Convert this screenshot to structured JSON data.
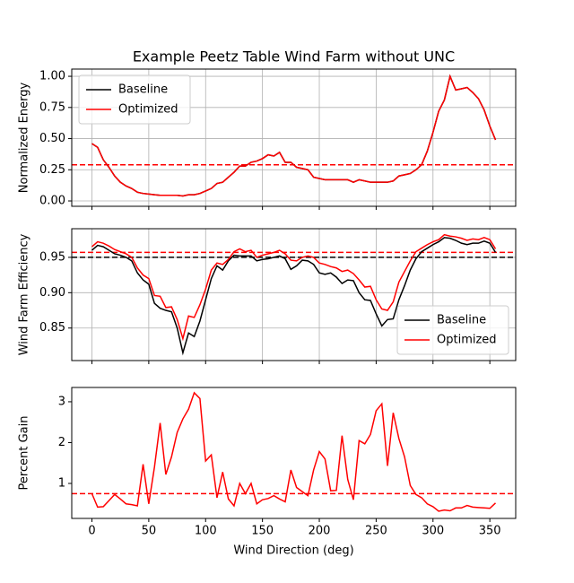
{
  "chart_data": [
    {
      "type": "line",
      "title": "Example Peetz Table Wind Farm without UNC",
      "ylabel": "Normalized Energy",
      "x": [
        0,
        5,
        10,
        15,
        20,
        25,
        30,
        35,
        40,
        45,
        50,
        55,
        60,
        65,
        70,
        75,
        80,
        85,
        90,
        95,
        100,
        105,
        110,
        115,
        120,
        125,
        130,
        135,
        140,
        145,
        150,
        155,
        160,
        165,
        170,
        175,
        180,
        185,
        190,
        195,
        200,
        205,
        210,
        215,
        220,
        225,
        230,
        235,
        240,
        245,
        250,
        255,
        260,
        265,
        270,
        275,
        280,
        285,
        290,
        295,
        300,
        305,
        310,
        315,
        320,
        325,
        330,
        335,
        340,
        345,
        350,
        355
      ],
      "series": [
        {
          "name": "Baseline",
          "color": "#000000",
          "values": [
            0.46,
            0.43,
            0.33,
            0.27,
            0.2,
            0.15,
            0.12,
            0.1,
            0.07,
            0.06,
            0.055,
            0.05,
            0.045,
            0.045,
            0.045,
            0.045,
            0.04,
            0.05,
            0.05,
            0.06,
            0.08,
            0.1,
            0.14,
            0.15,
            0.19,
            0.23,
            0.28,
            0.28,
            0.31,
            0.32,
            0.34,
            0.37,
            0.36,
            0.39,
            0.31,
            0.31,
            0.27,
            0.26,
            0.25,
            0.19,
            0.18,
            0.17,
            0.17,
            0.17,
            0.17,
            0.17,
            0.15,
            0.17,
            0.16,
            0.15,
            0.15,
            0.15,
            0.15,
            0.16,
            0.2,
            0.21,
            0.22,
            0.25,
            0.29,
            0.4,
            0.55,
            0.72,
            0.81,
            1.0,
            0.89,
            0.9,
            0.91,
            0.87,
            0.82,
            0.73,
            0.6,
            0.49
          ]
        },
        {
          "name": "Optimized",
          "color": "#ff0000",
          "values": [
            0.46,
            0.43,
            0.33,
            0.27,
            0.2,
            0.15,
            0.12,
            0.1,
            0.07,
            0.06,
            0.055,
            0.05,
            0.045,
            0.045,
            0.045,
            0.045,
            0.04,
            0.05,
            0.05,
            0.06,
            0.08,
            0.1,
            0.14,
            0.15,
            0.19,
            0.23,
            0.28,
            0.28,
            0.31,
            0.32,
            0.34,
            0.37,
            0.36,
            0.39,
            0.31,
            0.31,
            0.27,
            0.26,
            0.25,
            0.19,
            0.18,
            0.17,
            0.17,
            0.17,
            0.17,
            0.17,
            0.15,
            0.17,
            0.16,
            0.15,
            0.15,
            0.15,
            0.15,
            0.16,
            0.2,
            0.21,
            0.22,
            0.25,
            0.29,
            0.4,
            0.55,
            0.72,
            0.81,
            1.0,
            0.89,
            0.9,
            0.91,
            0.87,
            0.82,
            0.73,
            0.6,
            0.49
          ]
        }
      ],
      "hlines": [
        {
          "value": 0.29,
          "color": "#ff0000"
        }
      ],
      "xlim": [
        -17.75,
        372.75
      ],
      "xticks": [
        0,
        50,
        100,
        150,
        200,
        250,
        300,
        350
      ],
      "xtick_labels": false,
      "ylim": [
        -0.043,
        1.058
      ],
      "yticks": [
        {
          "value": 0,
          "label": "0.00"
        },
        0.25,
        {
          "value": 0.5,
          "label": "0.50"
        },
        0.75,
        {
          "value": 1,
          "label": "1.00"
        }
      ],
      "grid": true,
      "legend": "upper left"
    },
    {
      "type": "line",
      "ylabel": "Wind Farm Efficiency",
      "x": [
        0,
        5,
        10,
        15,
        20,
        25,
        30,
        35,
        40,
        45,
        50,
        55,
        60,
        65,
        70,
        75,
        80,
        85,
        90,
        95,
        100,
        105,
        110,
        115,
        120,
        125,
        130,
        135,
        140,
        145,
        150,
        155,
        160,
        165,
        170,
        175,
        180,
        185,
        190,
        195,
        200,
        205,
        210,
        215,
        220,
        225,
        230,
        235,
        240,
        245,
        250,
        255,
        260,
        265,
        270,
        275,
        280,
        285,
        290,
        295,
        300,
        305,
        310,
        315,
        320,
        325,
        330,
        335,
        340,
        345,
        350,
        355
      ],
      "series": [
        {
          "name": "Baseline",
          "color": "#000000",
          "values": [
            0.96,
            0.967,
            0.965,
            0.96,
            0.955,
            0.953,
            0.95,
            0.945,
            0.928,
            0.918,
            0.912,
            0.885,
            0.878,
            0.875,
            0.873,
            0.85,
            0.815,
            0.843,
            0.838,
            0.86,
            0.89,
            0.92,
            0.938,
            0.932,
            0.945,
            0.953,
            0.952,
            0.952,
            0.952,
            0.945,
            0.947,
            0.948,
            0.95,
            0.952,
            0.948,
            0.933,
            0.938,
            0.946,
            0.945,
            0.94,
            0.928,
            0.926,
            0.928,
            0.922,
            0.913,
            0.918,
            0.917,
            0.9,
            0.89,
            0.889,
            0.87,
            0.853,
            0.862,
            0.863,
            0.89,
            0.91,
            0.932,
            0.948,
            0.958,
            0.963,
            0.968,
            0.972,
            0.978,
            0.977,
            0.974,
            0.97,
            0.968,
            0.97,
            0.97,
            0.973,
            0.97,
            0.957
          ]
        },
        {
          "name": "Optimized",
          "color": "#ff0000",
          "values": [
            0.965,
            0.972,
            0.97,
            0.966,
            0.961,
            0.958,
            0.955,
            0.95,
            0.935,
            0.925,
            0.92,
            0.896,
            0.895,
            0.879,
            0.88,
            0.862,
            0.835,
            0.867,
            0.865,
            0.883,
            0.905,
            0.932,
            0.942,
            0.94,
            0.947,
            0.958,
            0.962,
            0.958,
            0.96,
            0.95,
            0.953,
            0.955,
            0.957,
            0.96,
            0.955,
            0.946,
            0.945,
            0.95,
            0.952,
            0.95,
            0.942,
            0.94,
            0.937,
            0.935,
            0.93,
            0.932,
            0.927,
            0.918,
            0.908,
            0.909,
            0.89,
            0.877,
            0.875,
            0.887,
            0.915,
            0.93,
            0.945,
            0.958,
            0.963,
            0.968,
            0.972,
            0.975,
            0.982,
            0.98,
            0.979,
            0.977,
            0.974,
            0.976,
            0.975,
            0.978,
            0.975,
            0.962
          ]
        }
      ],
      "hlines": [
        {
          "value": 0.957,
          "color": "#ff0000"
        },
        {
          "value": 0.95,
          "color": "#000000"
        }
      ],
      "xlim": [
        -17.75,
        372.75
      ],
      "xticks": [
        0,
        50,
        100,
        150,
        200,
        250,
        300,
        350
      ],
      "xtick_labels": false,
      "ylim": [
        0.804,
        0.9905
      ],
      "yticks": [
        0.85,
        {
          "value": 0.9,
          "label": "0.90"
        },
        0.95
      ],
      "grid": true,
      "legend": "lower right"
    },
    {
      "type": "line",
      "ylabel": "Percent Gain",
      "xlabel": "Wind Direction (deg)",
      "x": [
        0,
        5,
        10,
        15,
        20,
        25,
        30,
        35,
        40,
        45,
        50,
        55,
        60,
        65,
        70,
        75,
        80,
        85,
        90,
        95,
        100,
        105,
        110,
        115,
        120,
        125,
        130,
        135,
        140,
        145,
        150,
        155,
        160,
        165,
        170,
        175,
        180,
        185,
        190,
        195,
        200,
        205,
        210,
        215,
        220,
        225,
        230,
        235,
        240,
        245,
        250,
        255,
        260,
        265,
        270,
        275,
        280,
        285,
        290,
        295,
        300,
        305,
        310,
        315,
        320,
        325,
        330,
        335,
        340,
        345,
        350,
        355
      ],
      "series": [
        {
          "color": "#ff0000",
          "values": [
            0.75,
            0.42,
            0.43,
            0.58,
            0.73,
            0.62,
            0.5,
            0.48,
            0.45,
            1.47,
            0.5,
            1.4,
            2.48,
            1.22,
            1.65,
            2.25,
            2.58,
            2.82,
            3.22,
            3.08,
            1.55,
            1.7,
            0.65,
            1.28,
            0.62,
            0.45,
            1.0,
            0.75,
            1.0,
            0.5,
            0.6,
            0.63,
            0.7,
            0.62,
            0.55,
            1.33,
            0.9,
            0.8,
            0.7,
            1.33,
            1.78,
            1.6,
            0.82,
            0.83,
            2.17,
            1.1,
            0.6,
            2.05,
            1.97,
            2.2,
            2.78,
            2.95,
            1.43,
            2.73,
            2.1,
            1.65,
            0.95,
            0.73,
            0.65,
            0.5,
            0.43,
            0.32,
            0.35,
            0.33,
            0.4,
            0.4,
            0.46,
            0.42,
            0.41,
            0.4,
            0.39,
            0.52
          ]
        }
      ],
      "hlines": [
        {
          "value": 0.75,
          "color": "#ff0000"
        }
      ],
      "xlim": [
        -17.75,
        372.75
      ],
      "xticks": [
        0,
        50,
        100,
        150,
        200,
        250,
        300,
        350
      ],
      "xtick_labels": true,
      "ylim": [
        0.143,
        3.35
      ],
      "yticks": [
        1,
        2,
        3
      ],
      "grid": false
    }
  ]
}
